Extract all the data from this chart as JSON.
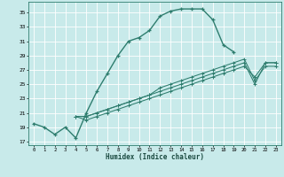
{
  "xlabel": "Humidex (Indice chaleur)",
  "bg_color": "#c8eaea",
  "grid_color": "#ffffff",
  "line_color": "#2e7d6e",
  "xlim": [
    -0.5,
    23.5
  ],
  "ylim": [
    16.5,
    36.5
  ],
  "yticks": [
    17,
    19,
    21,
    23,
    25,
    27,
    29,
    31,
    33,
    35
  ],
  "xticks": [
    0,
    1,
    2,
    3,
    4,
    5,
    6,
    7,
    8,
    9,
    10,
    11,
    12,
    13,
    14,
    15,
    16,
    17,
    18,
    19,
    20,
    21,
    22,
    23
  ],
  "lines": [
    {
      "x": [
        0,
        1,
        2,
        3,
        4,
        5,
        6,
        7,
        8,
        9,
        10,
        11,
        12,
        13,
        14,
        15,
        16,
        17,
        18,
        19
      ],
      "y": [
        19.5,
        19.0,
        18.0,
        19.0,
        17.5,
        21.0,
        24.0,
        26.5,
        29.0,
        31.0,
        31.5,
        32.5,
        34.5,
        35.2,
        35.5,
        35.5,
        35.5,
        34.0,
        30.5,
        29.5
      ]
    },
    {
      "x": [
        4,
        5,
        6,
        7,
        8,
        9,
        10,
        11,
        12,
        13,
        14,
        15,
        16,
        17,
        18,
        19,
        20,
        21,
        22,
        23
      ],
      "y": [
        20.5,
        20.5,
        21.0,
        21.5,
        22.0,
        22.5,
        23.0,
        23.5,
        24.5,
        25.0,
        25.5,
        26.0,
        26.5,
        27.0,
        27.5,
        28.0,
        28.5,
        25.5,
        27.5,
        27.5
      ]
    },
    {
      "x": [
        4,
        5,
        6,
        7,
        8,
        9,
        10,
        11,
        12,
        13,
        14,
        15,
        16,
        17,
        18,
        19,
        20,
        21,
        22,
        23
      ],
      "y": [
        20.5,
        20.5,
        21.0,
        21.5,
        22.0,
        22.5,
        23.0,
        23.5,
        24.0,
        24.5,
        25.0,
        25.5,
        26.0,
        26.5,
        27.0,
        27.5,
        28.0,
        25.0,
        28.0,
        28.0
      ]
    },
    {
      "x": [
        4,
        5,
        6,
        7,
        8,
        9,
        10,
        11,
        12,
        13,
        14,
        15,
        16,
        17,
        18,
        19,
        20,
        21,
        22,
        23
      ],
      "y": [
        20.5,
        20.0,
        20.5,
        21.0,
        21.5,
        22.0,
        22.5,
        23.0,
        23.5,
        24.0,
        24.5,
        25.0,
        25.5,
        26.0,
        26.5,
        27.0,
        27.5,
        26.0,
        28.0,
        28.0
      ]
    }
  ]
}
